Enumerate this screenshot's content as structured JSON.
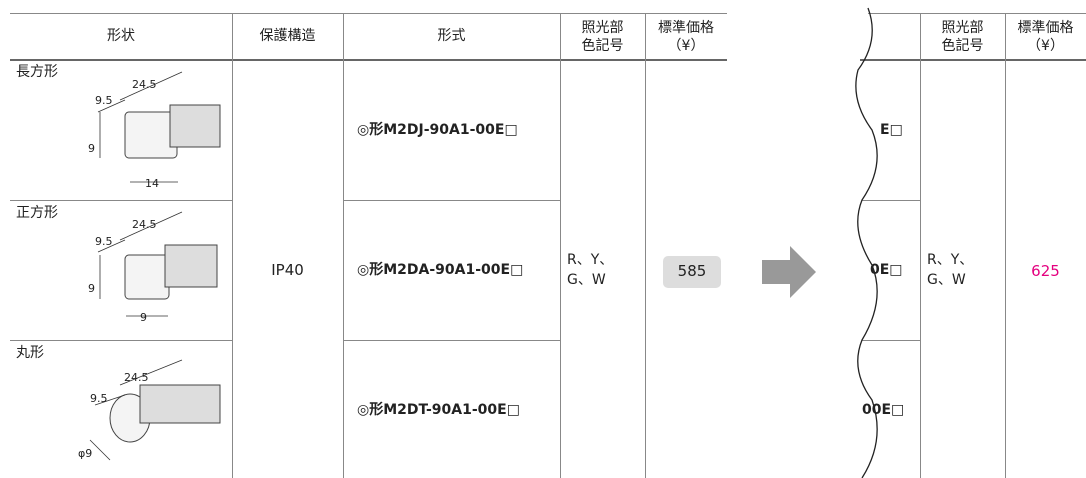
{
  "left_table": {
    "header": {
      "shape": "形状",
      "protection": "保護構造",
      "model": "形式",
      "color_code": [
        "照光部",
        "色記号"
      ],
      "price": [
        "標準価格",
        "（¥）"
      ]
    },
    "rows": [
      {
        "shape": "長方形",
        "dims": [
          "24.5",
          "9.5",
          "9",
          "14"
        ],
        "model": "◎形M2DJ-90A1-00E□"
      },
      {
        "shape": "正方形",
        "dims": [
          "24.5",
          "9.5",
          "9",
          "9"
        ],
        "model": "◎形M2DA-90A1-00E□"
      },
      {
        "shape": "丸形",
        "dims": [
          "24.5",
          "9.5",
          "φ9"
        ],
        "model": "◎形M2DT-90A1-00E□"
      }
    ],
    "protection": "IP40",
    "color_code": [
      "R、Y、",
      "G、W"
    ],
    "price": "585"
  },
  "right_table": {
    "header": {
      "color_code": [
        "照光部",
        "色記号"
      ],
      "price": [
        "標準価格",
        "（¥）"
      ]
    },
    "models": [
      "E□",
      "0E□",
      "00E□"
    ],
    "color_code": [
      "R、Y、",
      "G、W"
    ],
    "price": "625"
  }
}
